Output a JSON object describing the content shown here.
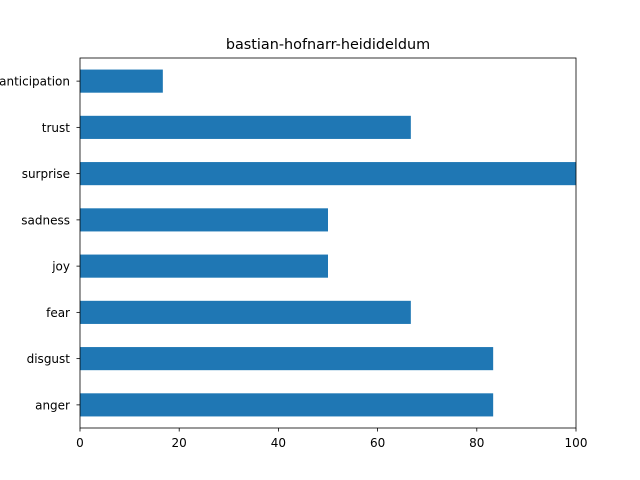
{
  "chart_data": {
    "type": "bar",
    "orientation": "horizontal",
    "title": "bastian-hofnarr-heidideldum",
    "xlabel": "",
    "ylabel": "",
    "categories": [
      "anger",
      "disgust",
      "fear",
      "joy",
      "sadness",
      "surprise",
      "trust",
      "anticipation"
    ],
    "values": [
      83.3,
      83.3,
      66.7,
      50.0,
      50.0,
      100.0,
      66.7,
      16.7
    ],
    "xlim": [
      0,
      100
    ],
    "xticks": [
      0,
      20,
      40,
      60,
      80,
      100
    ],
    "grid": false,
    "bar_color": "#1f77b4"
  }
}
